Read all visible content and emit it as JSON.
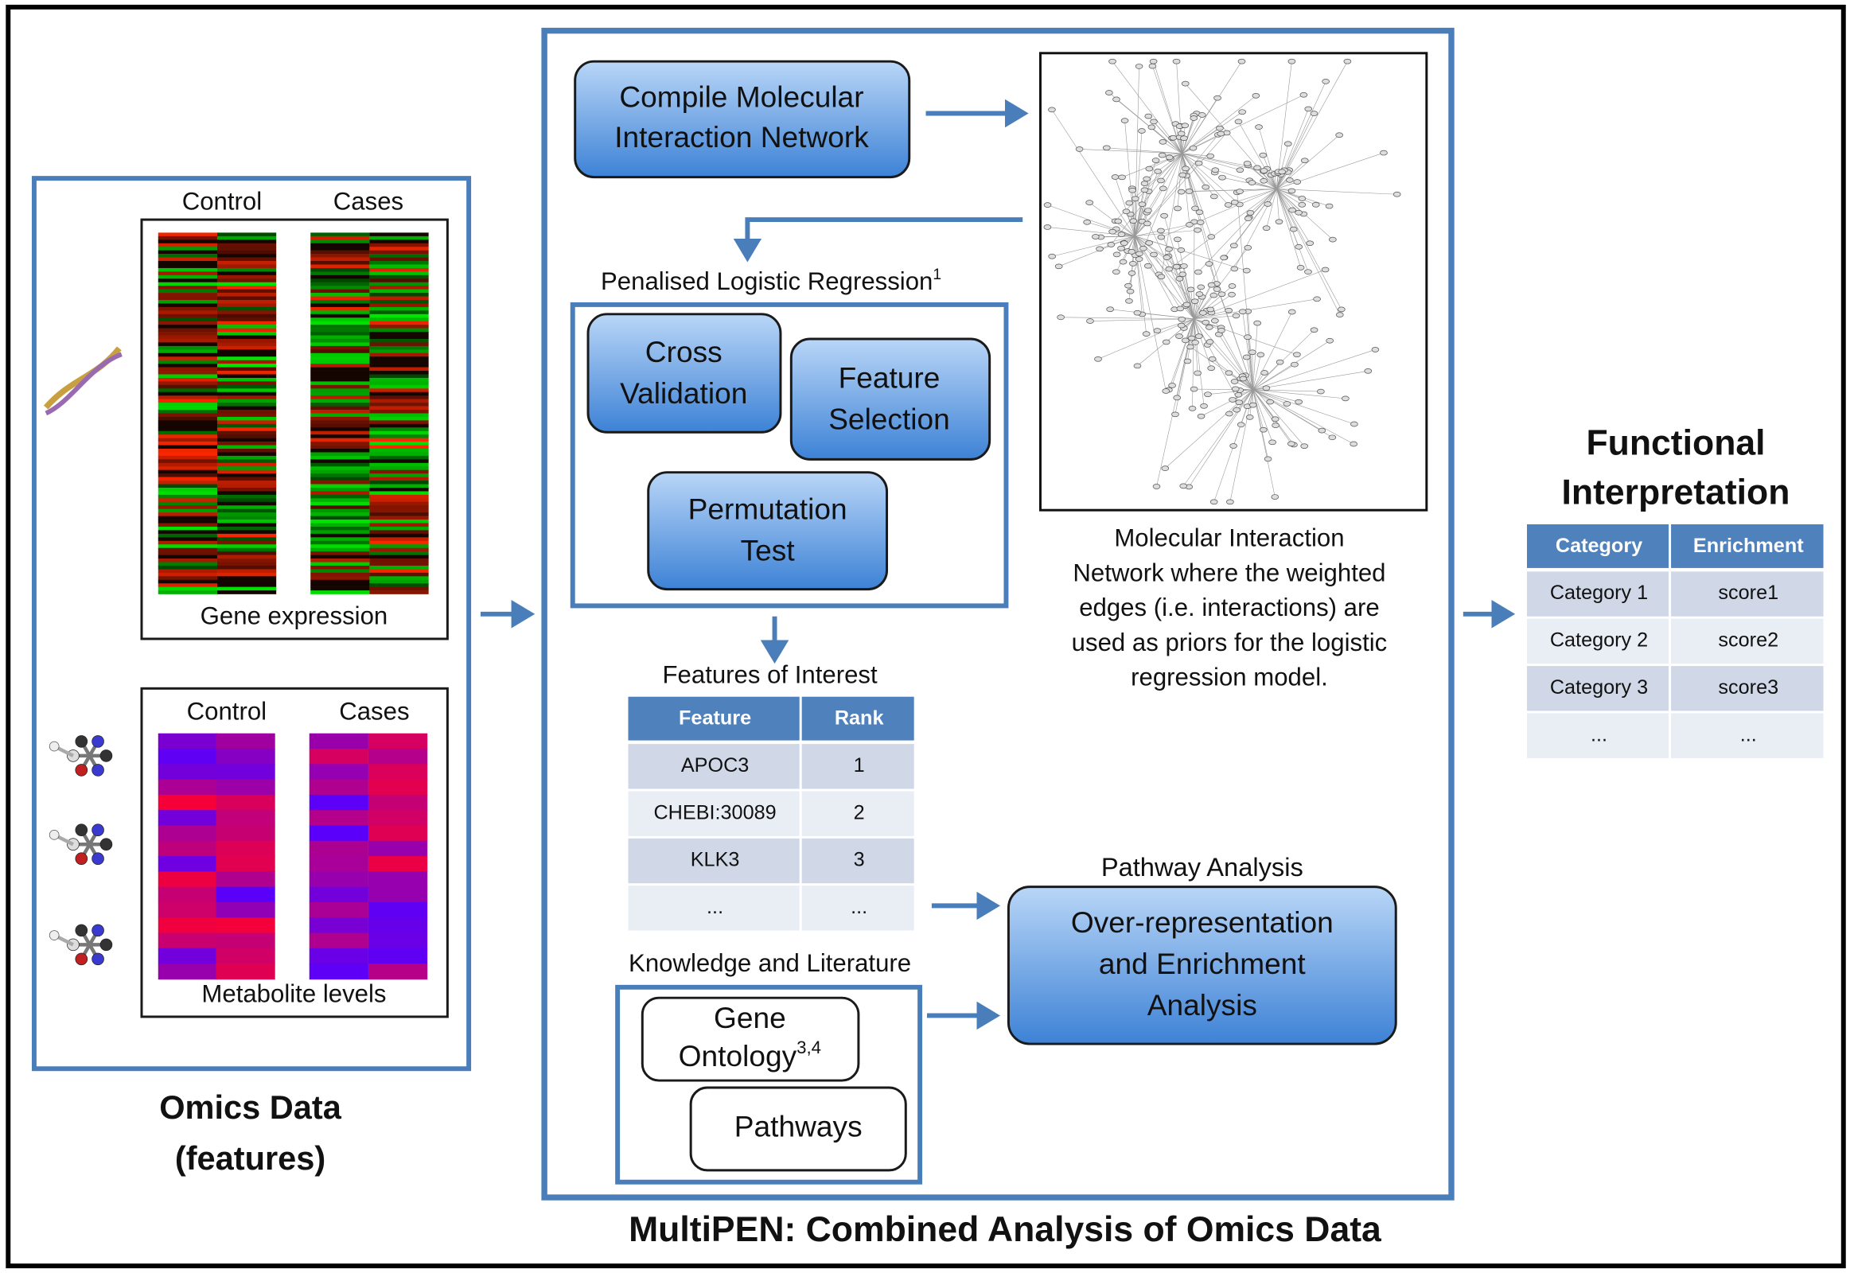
{
  "omics": {
    "title": [
      "Omics Data",
      "(features)"
    ],
    "gene_expression": {
      "columns": [
        "Control",
        "Cases"
      ],
      "caption": "Gene expression"
    },
    "metabolite_levels": {
      "columns": [
        "Control",
        "Cases"
      ],
      "caption": "Metabolite levels"
    }
  },
  "multipen": {
    "title": "MultiPEN: Combined Analysis of Omics Data",
    "compile": [
      "Compile Molecular",
      "Interaction Network"
    ],
    "regression": {
      "label": "Penalised Logistic Regression",
      "note": "1",
      "cross_validation": [
        "Cross",
        "Validation"
      ],
      "feature_selection": [
        "Feature",
        "Selection"
      ],
      "permutation_test": [
        "Permutation",
        "Test"
      ]
    },
    "features": {
      "title": "Features of Interest",
      "header": [
        "Feature",
        "Rank"
      ],
      "rows": [
        [
          "APOC3",
          1
        ],
        [
          "CHEBI:30089",
          2
        ],
        [
          "KLK3",
          3
        ],
        [
          "...",
          "..."
        ]
      ]
    },
    "knowledge": {
      "title": "Knowledge and Literature",
      "gene_ontology": [
        "Gene",
        "Ontology"
      ],
      "gene_ontology_note": "3,4",
      "pathways": "Pathways"
    },
    "pathway_analysis": {
      "title": "Pathway Analysis",
      "box": [
        "Over-representation",
        "and Enrichment",
        "Analysis"
      ]
    },
    "network_caption": [
      "Molecular Interaction",
      "Network where the weighted",
      "edges (i.e. interactions) are",
      "used as priors for the logistic",
      "regression model."
    ]
  },
  "functional": {
    "title": [
      "Functional",
      "Interpretation"
    ],
    "header": [
      "Category",
      "Enrichment"
    ],
    "rows": [
      [
        "Category 1",
        "score1"
      ],
      [
        "Category 2",
        "score2"
      ],
      [
        "Category 3",
        "score3"
      ],
      [
        "...",
        "..."
      ]
    ]
  }
}
